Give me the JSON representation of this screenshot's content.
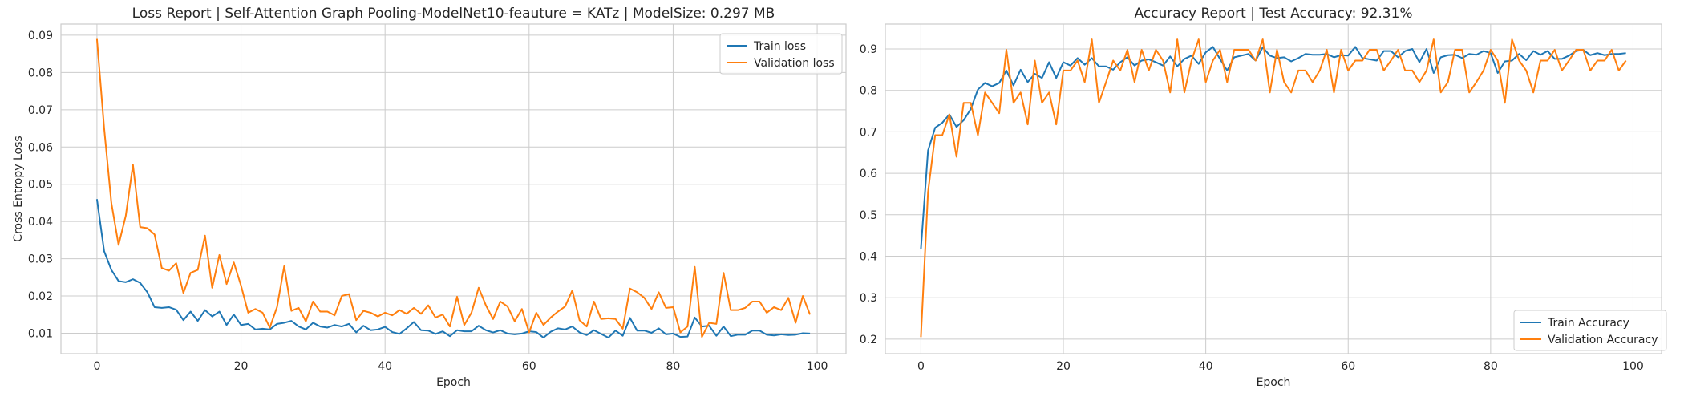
{
  "colors": {
    "series1": "#1f77b4",
    "series2": "#ff7f0e",
    "grid": "#cccccc",
    "text": "#262626"
  },
  "chart_data": [
    {
      "type": "line",
      "title": "Loss Report | Self-Attention Graph Pooling-ModelNet10-feauture = KATz | ModelSize: 0.297 MB",
      "xlabel": "Epoch",
      "ylabel": "Cross Entropy Loss",
      "xlim": [
        -5,
        104
      ],
      "ylim": [
        0.0045,
        0.093
      ],
      "xticks": [
        0,
        20,
        40,
        60,
        80,
        100
      ],
      "yticks": [
        0.01,
        0.02,
        0.03,
        0.04,
        0.05,
        0.06,
        0.07,
        0.08,
        0.09
      ],
      "grid": true,
      "legend": "top-right",
      "series": [
        {
          "name": "Train loss",
          "values": [
            0.046,
            0.032,
            0.027,
            0.024,
            0.0237,
            0.0245,
            0.0235,
            0.021,
            0.017,
            0.0168,
            0.017,
            0.0163,
            0.0135,
            0.0158,
            0.0133,
            0.0162,
            0.0145,
            0.0158,
            0.0122,
            0.015,
            0.0122,
            0.0125,
            0.011,
            0.0112,
            0.011,
            0.0125,
            0.0128,
            0.0133,
            0.0118,
            0.011,
            0.0128,
            0.0118,
            0.0115,
            0.0122,
            0.0118,
            0.0125,
            0.0102,
            0.012,
            0.0108,
            0.011,
            0.0117,
            0.0103,
            0.0098,
            0.0113,
            0.013,
            0.0108,
            0.0107,
            0.0098,
            0.0105,
            0.0092,
            0.0108,
            0.0105,
            0.0105,
            0.012,
            0.0108,
            0.0102,
            0.0108,
            0.0099,
            0.0097,
            0.0099,
            0.0105,
            0.0103,
            0.0088,
            0.0104,
            0.0113,
            0.011,
            0.0118,
            0.0102,
            0.0095,
            0.0108,
            0.0098,
            0.0088,
            0.0107,
            0.0093,
            0.0141,
            0.0107,
            0.0107,
            0.0101,
            0.0113,
            0.0097,
            0.0099,
            0.009,
            0.0091,
            0.0142,
            0.0118,
            0.012,
            0.0093,
            0.0118,
            0.0092,
            0.0096,
            0.0096,
            0.0107,
            0.0107,
            0.0096,
            0.0094,
            0.0097,
            0.0095,
            0.0096,
            0.01,
            0.0099
          ]
        },
        {
          "name": "Validation loss",
          "values": [
            0.089,
            0.065,
            0.045,
            0.0337,
            0.0415,
            0.0552,
            0.0385,
            0.0382,
            0.0365,
            0.0275,
            0.0268,
            0.0288,
            0.0208,
            0.0262,
            0.027,
            0.0362,
            0.0222,
            0.031,
            0.0232,
            0.029,
            0.0228,
            0.0155,
            0.0165,
            0.0155,
            0.0115,
            0.017,
            0.028,
            0.016,
            0.0168,
            0.0132,
            0.0185,
            0.0158,
            0.0158,
            0.0148,
            0.02,
            0.0205,
            0.0135,
            0.016,
            0.0155,
            0.0145,
            0.0155,
            0.0148,
            0.0162,
            0.0152,
            0.0168,
            0.0152,
            0.0175,
            0.0142,
            0.015,
            0.0118,
            0.0198,
            0.0122,
            0.0155,
            0.0222,
            0.0175,
            0.0138,
            0.0185,
            0.0172,
            0.0132,
            0.0165,
            0.0102,
            0.0155,
            0.0122,
            0.0142,
            0.0158,
            0.0172,
            0.0215,
            0.0135,
            0.0118,
            0.0185,
            0.0138,
            0.014,
            0.0138,
            0.0112,
            0.022,
            0.021,
            0.0195,
            0.0165,
            0.021,
            0.0168,
            0.017,
            0.0102,
            0.0118,
            0.0278,
            0.009,
            0.0128,
            0.0125,
            0.0262,
            0.0162,
            0.0162,
            0.0168,
            0.0185,
            0.0185,
            0.0155,
            0.017,
            0.0162,
            0.0195,
            0.0128,
            0.02,
            0.015
          ]
        }
      ]
    },
    {
      "type": "line",
      "title": "Accuracy Report | Test Accuracy: 92.31%",
      "xlabel": "Epoch",
      "ylabel": "",
      "xlim": [
        -5,
        104
      ],
      "ylim": [
        0.165,
        0.96
      ],
      "xticks": [
        0,
        20,
        40,
        60,
        80,
        100
      ],
      "yticks": [
        0.2,
        0.3,
        0.4,
        0.5,
        0.6,
        0.7,
        0.8,
        0.9
      ],
      "grid": true,
      "legend": "bottom-right",
      "series": [
        {
          "name": "Train Accuracy",
          "values": [
            0.418,
            0.655,
            0.71,
            0.722,
            0.742,
            0.712,
            0.728,
            0.755,
            0.802,
            0.818,
            0.81,
            0.818,
            0.848,
            0.812,
            0.85,
            0.82,
            0.84,
            0.83,
            0.868,
            0.83,
            0.868,
            0.86,
            0.878,
            0.862,
            0.878,
            0.858,
            0.858,
            0.85,
            0.868,
            0.88,
            0.86,
            0.872,
            0.875,
            0.868,
            0.86,
            0.882,
            0.858,
            0.876,
            0.884,
            0.864,
            0.892,
            0.905,
            0.876,
            0.848,
            0.88,
            0.884,
            0.888,
            0.872,
            0.904,
            0.884,
            0.878,
            0.88,
            0.87,
            0.878,
            0.888,
            0.886,
            0.886,
            0.888,
            0.88,
            0.885,
            0.884,
            0.905,
            0.878,
            0.875,
            0.872,
            0.895,
            0.895,
            0.88,
            0.895,
            0.9,
            0.868,
            0.9,
            0.842,
            0.88,
            0.885,
            0.886,
            0.878,
            0.888,
            0.886,
            0.895,
            0.89,
            0.842,
            0.87,
            0.872,
            0.888,
            0.873,
            0.895,
            0.886,
            0.895,
            0.876,
            0.876,
            0.884,
            0.895,
            0.898,
            0.885,
            0.89,
            0.885,
            0.888,
            0.888,
            0.89
          ]
        },
        {
          "name": "Validation Accuracy",
          "values": [
            0.205,
            0.555,
            0.692,
            0.692,
            0.742,
            0.64,
            0.77,
            0.77,
            0.692,
            0.795,
            0.77,
            0.745,
            0.898,
            0.77,
            0.795,
            0.718,
            0.872,
            0.77,
            0.795,
            0.718,
            0.848,
            0.848,
            0.872,
            0.82,
            0.923,
            0.77,
            0.82,
            0.872,
            0.848,
            0.898,
            0.82,
            0.898,
            0.848,
            0.898,
            0.872,
            0.795,
            0.923,
            0.795,
            0.872,
            0.923,
            0.82,
            0.872,
            0.898,
            0.82,
            0.898,
            0.898,
            0.898,
            0.872,
            0.923,
            0.795,
            0.898,
            0.82,
            0.795,
            0.848,
            0.848,
            0.82,
            0.848,
            0.898,
            0.795,
            0.898,
            0.848,
            0.872,
            0.872,
            0.898,
            0.898,
            0.848,
            0.872,
            0.898,
            0.848,
            0.848,
            0.82,
            0.848,
            0.923,
            0.795,
            0.82,
            0.898,
            0.898,
            0.795,
            0.82,
            0.848,
            0.898,
            0.872,
            0.77,
            0.923,
            0.872,
            0.848,
            0.795,
            0.872,
            0.872,
            0.898,
            0.848,
            0.872,
            0.898,
            0.898,
            0.848,
            0.872,
            0.872,
            0.898,
            0.848,
            0.872
          ]
        }
      ]
    }
  ]
}
